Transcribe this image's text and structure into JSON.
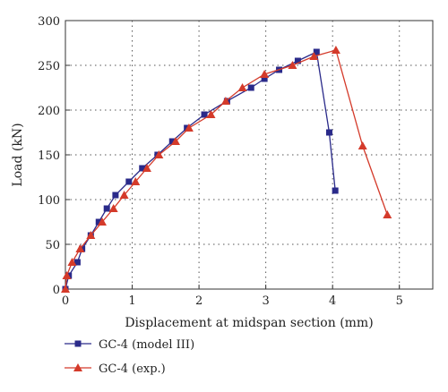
{
  "chart_data": {
    "type": "line",
    "xlabel": "Displacement at midspan section (mm)",
    "ylabel": "Load (kN)",
    "xlim": [
      0,
      5.5
    ],
    "ylim": [
      0,
      300
    ],
    "x_ticks": [
      "0",
      "1",
      "2",
      "3",
      "4",
      "5"
    ],
    "y_ticks": [
      "0",
      "50",
      "100",
      "150",
      "200",
      "250",
      "300"
    ],
    "grid": true,
    "legend_position": "bottom-left",
    "series": [
      {
        "name": "GC-4 (model III)",
        "color": "#2a2a8a",
        "marker": "square",
        "points": [
          [
            0.0,
            0
          ],
          [
            0.05,
            15
          ],
          [
            0.18,
            30
          ],
          [
            0.25,
            45
          ],
          [
            0.38,
            60
          ],
          [
            0.5,
            75
          ],
          [
            0.62,
            90
          ],
          [
            0.75,
            105
          ],
          [
            0.95,
            120
          ],
          [
            1.15,
            135
          ],
          [
            1.38,
            150
          ],
          [
            1.6,
            165
          ],
          [
            1.82,
            180
          ],
          [
            2.08,
            195
          ],
          [
            2.42,
            210
          ],
          [
            2.78,
            225
          ],
          [
            2.98,
            235
          ],
          [
            3.2,
            245
          ],
          [
            3.48,
            255
          ],
          [
            3.76,
            265
          ],
          [
            3.95,
            175
          ],
          [
            4.04,
            110
          ]
        ]
      },
      {
        "name": "GC-4 (exp.)",
        "color": "#d43a2a",
        "marker": "triangle",
        "points": [
          [
            0.0,
            0
          ],
          [
            0.02,
            15
          ],
          [
            0.1,
            30
          ],
          [
            0.22,
            45
          ],
          [
            0.38,
            60
          ],
          [
            0.55,
            75
          ],
          [
            0.72,
            90
          ],
          [
            0.88,
            105
          ],
          [
            1.05,
            120
          ],
          [
            1.22,
            135
          ],
          [
            1.4,
            150
          ],
          [
            1.65,
            165
          ],
          [
            1.85,
            180
          ],
          [
            2.18,
            195
          ],
          [
            2.4,
            210
          ],
          [
            2.65,
            225
          ],
          [
            2.98,
            240
          ],
          [
            3.4,
            250
          ],
          [
            3.72,
            260
          ],
          [
            4.05,
            267
          ],
          [
            4.45,
            160
          ],
          [
            4.82,
            83
          ]
        ]
      }
    ]
  }
}
